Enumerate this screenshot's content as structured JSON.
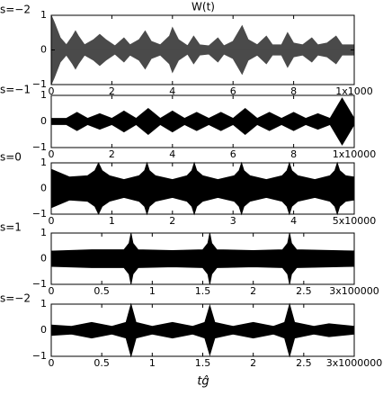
{
  "chart_data": [
    {
      "type": "area",
      "title": "W(t)",
      "ylabel": "s=−2",
      "color": "#4a4a4a",
      "x": [
        0,
        0.1,
        0.3,
        0.5,
        0.7,
        0.8,
        0.9,
        1.1,
        1.4,
        1.6,
        1.8,
        2.1,
        2.4,
        2.6,
        2.9,
        3.1,
        3.3,
        3.6,
        3.9,
        4.0,
        4.2,
        4.5,
        4.7,
        4.9,
        5.2,
        5.5,
        5.7,
        6.0,
        6.3,
        6.5,
        6.8,
        7.1,
        7.3,
        7.6,
        7.8,
        8.0,
        8.3,
        8.6,
        8.8,
        9.1,
        9.4,
        9.6,
        10
      ],
      "values": [
        1,
        0.8,
        0.35,
        0.15,
        0.4,
        0.55,
        0.4,
        0.15,
        0.3,
        0.45,
        0.3,
        0.12,
        0.35,
        0.15,
        0.3,
        0.55,
        0.25,
        0.15,
        0.4,
        0.65,
        0.3,
        0.12,
        0.4,
        0.15,
        0.12,
        0.35,
        0.12,
        0.25,
        0.7,
        0.3,
        0.15,
        0.4,
        0.15,
        0.15,
        0.5,
        0.2,
        0.15,
        0.35,
        0.15,
        0.2,
        0.4,
        0.15,
        0.15
      ],
      "xlim": [
        0,
        10
      ],
      "xticks": [
        0,
        2,
        4,
        6,
        8,
        {
          "value": 10,
          "label": "1x1000"
        }
      ],
      "ylim": [
        -1,
        1
      ],
      "yticks": [
        {
          "value": -1,
          "label": "−1"
        },
        0,
        1
      ]
    },
    {
      "type": "area",
      "ylabel": "s=−1",
      "color": "#000000",
      "x": [
        0,
        0.5,
        0.85,
        1.2,
        1.6,
        2.0,
        2.4,
        2.8,
        3.2,
        3.6,
        4.0,
        4.4,
        4.8,
        5.2,
        5.6,
        6.0,
        6.4,
        6.8,
        7.2,
        7.6,
        8.0,
        8.4,
        8.8,
        9.2,
        9.6,
        10
      ],
      "values": [
        0.12,
        0.12,
        0.35,
        0.12,
        0.3,
        0.12,
        0.4,
        0.12,
        0.5,
        0.12,
        0.4,
        0.12,
        0.35,
        0.12,
        0.35,
        0.12,
        0.5,
        0.12,
        0.35,
        0.12,
        0.35,
        0.12,
        0.3,
        0.12,
        0.9,
        0.12
      ],
      "xlim": [
        0,
        10
      ],
      "xticks": [
        0,
        2,
        4,
        6,
        8,
        {
          "value": 10,
          "label": "1x10000"
        }
      ],
      "ylim": [
        -1,
        1
      ],
      "yticks": [
        {
          "value": -1,
          "label": "−1"
        },
        0,
        1
      ]
    },
    {
      "type": "area",
      "ylabel": "s=0",
      "color": "#000000",
      "x": [
        0,
        0.3,
        0.6,
        0.72,
        0.78,
        0.84,
        0.96,
        1.2,
        1.45,
        1.54,
        1.58,
        1.62,
        1.72,
        2.0,
        2.24,
        2.32,
        2.36,
        2.4,
        2.5,
        2.75,
        3.02,
        3.1,
        3.14,
        3.18,
        3.28,
        3.55,
        3.81,
        3.89,
        3.93,
        3.97,
        4.07,
        4.35,
        4.6,
        4.68,
        4.72,
        4.76,
        4.86,
        5
      ],
      "values": [
        0.75,
        0.45,
        0.5,
        0.7,
        1,
        0.7,
        0.5,
        0.35,
        0.5,
        0.7,
        1,
        0.7,
        0.5,
        0.35,
        0.5,
        0.7,
        1,
        0.7,
        0.5,
        0.35,
        0.5,
        0.7,
        1,
        0.7,
        0.5,
        0.35,
        0.5,
        0.7,
        1,
        0.7,
        0.5,
        0.35,
        0.5,
        0.7,
        1,
        0.7,
        0.5,
        0.45
      ],
      "xlim": [
        0,
        5
      ],
      "xticks": [
        0,
        1,
        2,
        3,
        4,
        {
          "value": 5,
          "label": "5x10000"
        }
      ],
      "ylim": [
        -1,
        1
      ],
      "yticks": [
        {
          "value": -1,
          "label": "−1"
        },
        0,
        1
      ]
    },
    {
      "type": "area",
      "ylabel": "s=1",
      "color": "#000000",
      "x": [
        0,
        0.4,
        0.72,
        0.77,
        0.79,
        0.81,
        0.86,
        1.2,
        1.5,
        1.55,
        1.57,
        1.59,
        1.64,
        2.0,
        2.29,
        2.34,
        2.36,
        2.38,
        2.43,
        3
      ],
      "values": [
        0.3,
        0.35,
        0.35,
        0.6,
        1,
        0.6,
        0.35,
        0.32,
        0.35,
        0.6,
        1,
        0.6,
        0.35,
        0.32,
        0.35,
        0.6,
        1,
        0.6,
        0.35,
        0.3
      ],
      "xlim": [
        0,
        3
      ],
      "xticks": [
        0,
        0.5,
        1,
        1.5,
        2,
        2.5,
        {
          "value": 3,
          "label": "3x100000"
        }
      ],
      "ylim": [
        -1,
        1
      ],
      "yticks": [
        {
          "value": -1,
          "label": "−1"
        },
        0,
        1
      ]
    },
    {
      "type": "area",
      "ylabel": "s=−2",
      "xlabel": "tĝ",
      "color": "#000000",
      "x": [
        0,
        0.2,
        0.4,
        0.6,
        0.74,
        0.79,
        0.84,
        1.0,
        1.2,
        1.4,
        1.52,
        1.57,
        1.62,
        1.8,
        2.0,
        2.2,
        2.31,
        2.36,
        2.41,
        2.6,
        2.75,
        3
      ],
      "values": [
        0.2,
        0.15,
        0.3,
        0.15,
        0.3,
        1,
        0.3,
        0.15,
        0.3,
        0.15,
        0.3,
        0.95,
        0.3,
        0.15,
        0.3,
        0.15,
        0.3,
        1,
        0.3,
        0.15,
        0.25,
        0.15
      ],
      "xlim": [
        0,
        3
      ],
      "xticks": [
        0,
        0.5,
        1,
        1.5,
        2,
        2.5,
        {
          "value": 3,
          "label": "3x1000000"
        }
      ],
      "ylim": [
        -1,
        1
      ],
      "yticks": [
        {
          "value": -1,
          "label": "−1"
        },
        0,
        1
      ]
    }
  ]
}
